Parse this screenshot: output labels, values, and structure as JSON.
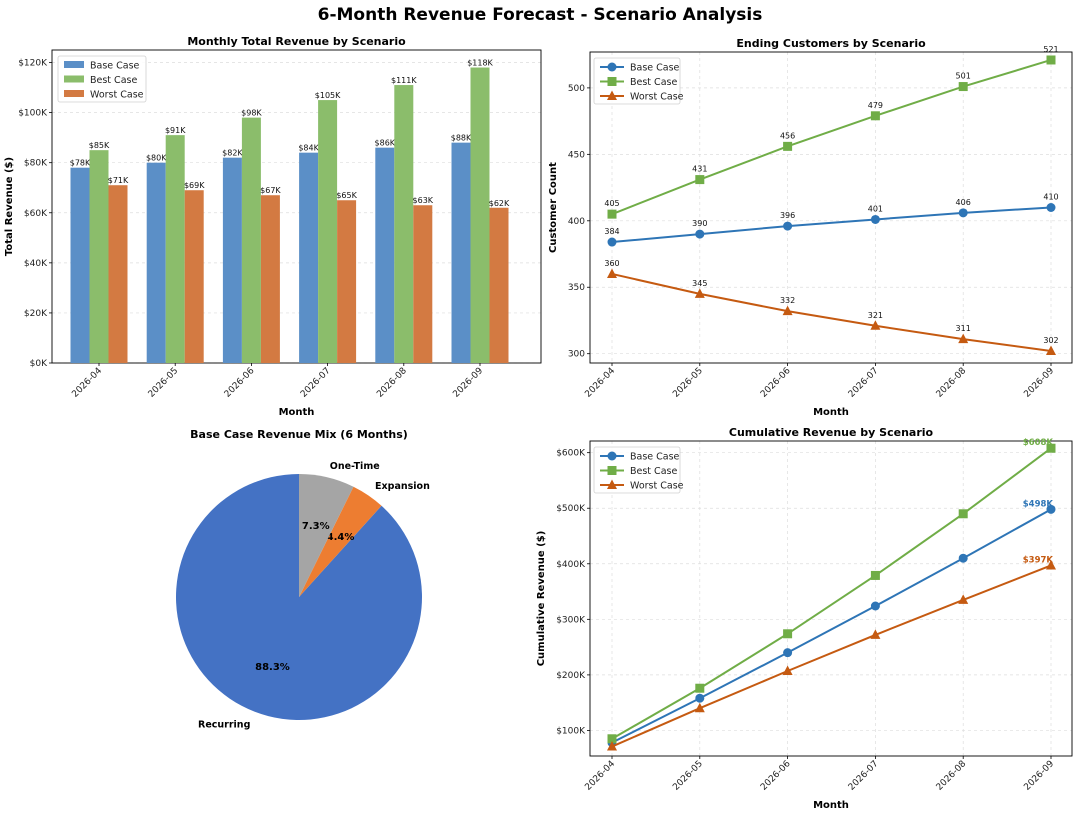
{
  "title": "6-Month Revenue Forecast - Scenario Analysis",
  "colors": {
    "bar": {
      "Base Case": "#5b8fc7",
      "Best Case": "#8bbd6b",
      "Worst Case": "#d37a42"
    },
    "line": {
      "Base Case": "#2e75b6",
      "Best Case": "#70ad47",
      "Worst Case": "#c55a11"
    },
    "pie": [
      "#4472c4",
      "#ed7d31",
      "#a5a5a5"
    ]
  },
  "chart_data": [
    {
      "type": "bar",
      "title": "Monthly Total Revenue by Scenario",
      "xlabel": "Month",
      "ylabel": "Total Revenue ($)",
      "categories": [
        "2026-04",
        "2026-05",
        "2026-06",
        "2026-07",
        "2026-08",
        "2026-09"
      ],
      "series": [
        {
          "name": "Base Case",
          "values": [
            78,
            80,
            82,
            84,
            86,
            88
          ],
          "labels": [
            "$78K",
            "$80K",
            "$82K",
            "$84K",
            "$86K",
            "$88K"
          ]
        },
        {
          "name": "Best Case",
          "values": [
            85,
            91,
            98,
            105,
            111,
            118
          ],
          "labels": [
            "$85K",
            "$91K",
            "$98K",
            "$105K",
            "$111K",
            "$118K"
          ]
        },
        {
          "name": "Worst Case",
          "values": [
            71,
            69,
            67,
            65,
            63,
            62
          ],
          "labels": [
            "$71K",
            "$69K",
            "$67K",
            "$65K",
            "$63K",
            "$62K"
          ]
        }
      ],
      "value_unit": "thousands of $",
      "ylim": [
        0,
        125
      ],
      "yticks": [
        0,
        20,
        40,
        60,
        80,
        100,
        120
      ],
      "yticklabels": [
        "$0K",
        "$20K",
        "$40K",
        "$60K",
        "$80K",
        "$100K",
        "$120K"
      ],
      "grid": true,
      "legend": "top-left"
    },
    {
      "type": "line",
      "title": "Ending Customers by Scenario",
      "xlabel": "Month",
      "ylabel": "Customer Count",
      "x": [
        "2026-04",
        "2026-05",
        "2026-06",
        "2026-07",
        "2026-08",
        "2026-09"
      ],
      "series": [
        {
          "name": "Base Case",
          "marker": "circle",
          "values": [
            384,
            390,
            396,
            401,
            406,
            410
          ]
        },
        {
          "name": "Best Case",
          "marker": "square",
          "values": [
            405,
            431,
            456,
            479,
            501,
            521
          ]
        },
        {
          "name": "Worst Case",
          "marker": "triangle",
          "values": [
            360,
            345,
            332,
            321,
            311,
            302
          ]
        }
      ],
      "ylim": [
        293,
        527
      ],
      "yticks": [
        300,
        350,
        400,
        450,
        500
      ],
      "grid": true,
      "legend": "top-left"
    },
    {
      "type": "pie",
      "title": "Base Case Revenue Mix (6 Months)",
      "labels": [
        "Recurring",
        "Expansion",
        "One-Time"
      ],
      "values": [
        88.3,
        4.4,
        7.3
      ],
      "pct_labels": [
        "88.3%",
        "4.4%",
        "7.3%"
      ]
    },
    {
      "type": "line",
      "title": "Cumulative Revenue by Scenario",
      "xlabel": "Month",
      "ylabel": "Cumulative Revenue ($)",
      "x": [
        "2026-04",
        "2026-05",
        "2026-06",
        "2026-07",
        "2026-08",
        "2026-09"
      ],
      "series": [
        {
          "name": "Base Case",
          "marker": "circle",
          "values": [
            78,
            158,
            240,
            324,
            410,
            498
          ],
          "end_label": "$498K"
        },
        {
          "name": "Best Case",
          "marker": "square",
          "values": [
            85,
            176,
            274,
            379,
            490,
            608
          ],
          "end_label": "$608K"
        },
        {
          "name": "Worst Case",
          "marker": "triangle",
          "values": [
            71,
            140,
            207,
            272,
            335,
            397
          ],
          "end_label": "$397K"
        }
      ],
      "value_unit": "thousands of $",
      "ylim": [
        54,
        621
      ],
      "yticks": [
        100,
        200,
        300,
        400,
        500,
        600
      ],
      "yticklabels": [
        "$100K",
        "$200K",
        "$300K",
        "$400K",
        "$500K",
        "$600K"
      ],
      "grid": true,
      "legend": "top-left"
    }
  ]
}
